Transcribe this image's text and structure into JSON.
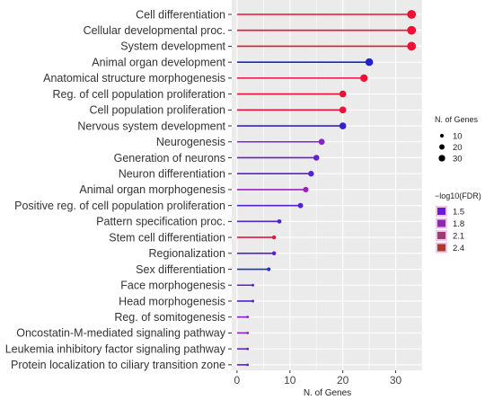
{
  "chart_data": {
    "type": "lollipop",
    "categories": [
      "Cell differentiation",
      "Cellular developmental proc.",
      "System development",
      "Animal organ development",
      "Anatomical structure morphogenesis",
      "Reg. of cell population proliferation",
      "Cell population proliferation",
      "Nervous system development",
      "Neurogenesis",
      "Generation of neurons",
      "Neuron differentiation",
      "Animal organ morphogenesis",
      "Positive reg. of cell population proliferation",
      "Pattern specification proc.",
      "Stem cell differentiation",
      "Regionalization",
      "Sex differentiation",
      "Face morphogenesis",
      "Head morphogenesis",
      "Reg. of somitogenesis",
      "Oncostatin-M-mediated signaling pathway",
      "Leukemia inhibitory factor signaling pathway",
      "Protein localization to ciliary transition zone"
    ],
    "values": [
      33,
      33,
      33,
      25,
      24,
      20,
      20,
      20,
      16,
      15,
      14,
      13,
      12,
      8,
      7,
      7,
      6,
      3,
      3,
      2,
      2,
      2,
      2
    ],
    "fdr_neglog10": [
      2.6,
      2.6,
      2.6,
      1.2,
      2.6,
      2.6,
      2.6,
      1.4,
      1.6,
      1.5,
      1.4,
      1.7,
      1.4,
      1.4,
      2.2,
      1.4,
      1.2,
      1.4,
      1.4,
      1.6,
      1.6,
      1.5,
      1.4
    ],
    "colors": [
      "#ee1133",
      "#ee1133",
      "#ee1133",
      "#2222cc",
      "#ee1133",
      "#ee1133",
      "#ee1133",
      "#3322cc",
      "#8822cc",
      "#6622cc",
      "#5522cc",
      "#9922bb",
      "#5522cc",
      "#5522cc",
      "#cc2244",
      "#5522cc",
      "#2233bb",
      "#5522cc",
      "#5522cc",
      "#8822cc",
      "#8822cc",
      "#6622cc",
      "#5522cc"
    ],
    "xlabel": "N. of Genes",
    "xlim": [
      -1,
      35
    ],
    "xticks": [
      0,
      10,
      20,
      30
    ],
    "grid": true,
    "legend_size": {
      "title": "N. of Genes",
      "entries": [
        10,
        20,
        30
      ]
    },
    "legend_color": {
      "title": "−log10(FDR)",
      "entries": [
        {
          "label": "1.5",
          "color": "#6a1bd6"
        },
        {
          "label": "1.8",
          "color": "#8a2ab0"
        },
        {
          "label": "2.1",
          "color": "#a03a70"
        },
        {
          "label": "2.4",
          "color": "#b23a2a"
        }
      ]
    },
    "panel_background": "#ebebeb"
  }
}
